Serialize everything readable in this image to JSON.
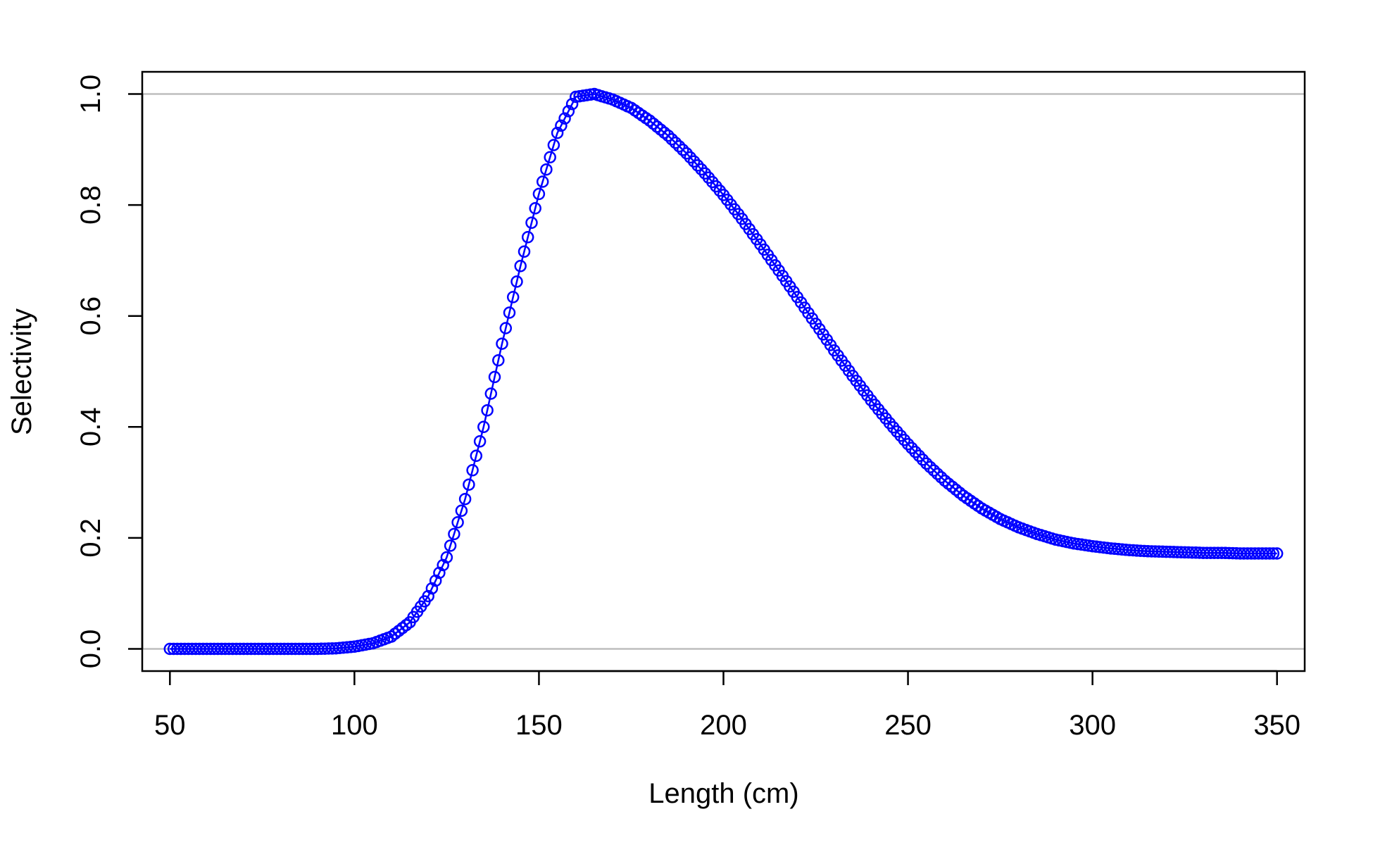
{
  "chart_data": {
    "type": "line",
    "title": "",
    "xlabel": "Length (cm)",
    "ylabel": "Selectivity",
    "xlim": [
      42.5,
      357.5
    ],
    "ylim": [
      -0.04,
      1.04
    ],
    "xticks": [
      50,
      100,
      150,
      200,
      250,
      300,
      350
    ],
    "xtick_labels": [
      "50",
      "100",
      "150",
      "200",
      "250",
      "300",
      "350"
    ],
    "yticks": [
      0.0,
      0.2,
      0.4,
      0.6,
      0.8,
      1.0
    ],
    "ytick_labels": [
      "0.0",
      "0.2",
      "0.4",
      "0.6",
      "0.8",
      "1.0"
    ],
    "reference_lines_y": [
      0,
      1
    ],
    "grid": false,
    "legend": "none",
    "colors": {
      "series": "#0000ff",
      "reference": "#bebebe",
      "axis": "#000000"
    },
    "marker": "open-circle",
    "series": [
      {
        "x": [
          50,
          55,
          60,
          65,
          70,
          75,
          80,
          85,
          90,
          95,
          100,
          105,
          110,
          115,
          120,
          125,
          130,
          135,
          140,
          145,
          150,
          155,
          160,
          165,
          170,
          175,
          180,
          185,
          190,
          195,
          200,
          205,
          210,
          215,
          220,
          225,
          230,
          235,
          240,
          245,
          250,
          255,
          260,
          265,
          270,
          275,
          280,
          285,
          290,
          295,
          300,
          305,
          310,
          315,
          320,
          325,
          330,
          335,
          340,
          345,
          350
        ],
        "values": [
          0.0,
          0.0,
          0.0,
          0.0,
          0.0,
          0.0,
          0.0,
          0.0,
          0.0,
          0.001,
          0.004,
          0.01,
          0.022,
          0.048,
          0.095,
          0.165,
          0.27,
          0.4,
          0.55,
          0.69,
          0.82,
          0.93,
          0.995,
          1.0,
          0.99,
          0.975,
          0.952,
          0.925,
          0.893,
          0.857,
          0.818,
          0.775,
          0.729,
          0.682,
          0.634,
          0.586,
          0.538,
          0.492,
          0.448,
          0.407,
          0.369,
          0.334,
          0.303,
          0.276,
          0.253,
          0.234,
          0.219,
          0.207,
          0.197,
          0.19,
          0.185,
          0.181,
          0.178,
          0.176,
          0.175,
          0.174,
          0.173,
          0.173,
          0.172,
          0.172,
          0.172
        ]
      }
    ]
  }
}
